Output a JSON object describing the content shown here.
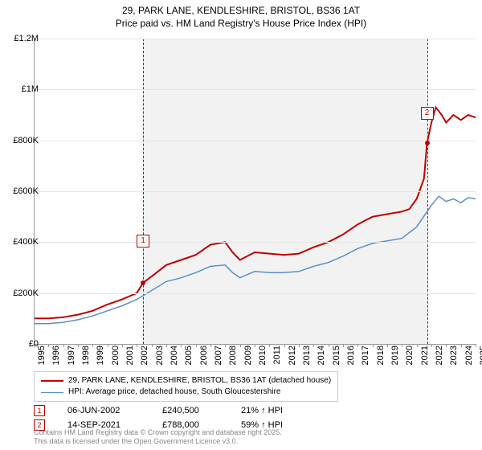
{
  "title_line1": "29, PARK LANE, KENDLESHIRE, BRISTOL, BS36 1AT",
  "title_line2": "Price paid vs. HM Land Registry's House Price Index (HPI)",
  "chart": {
    "type": "line",
    "x_min": 1995,
    "x_max": 2025,
    "y_min": 0,
    "y_max": 1200000,
    "y_ticks": [
      0,
      200000,
      400000,
      600000,
      800000,
      1000000,
      1200000
    ],
    "y_tick_labels": [
      "£0",
      "£200K",
      "£400K",
      "£600K",
      "£800K",
      "£1M",
      "£1.2M"
    ],
    "x_ticks": [
      1995,
      1996,
      1997,
      1998,
      1999,
      2000,
      2001,
      2002,
      2003,
      2004,
      2005,
      2006,
      2007,
      2008,
      2009,
      2010,
      2011,
      2012,
      2013,
      2014,
      2015,
      2016,
      2017,
      2018,
      2019,
      2020,
      2021,
      2022,
      2023,
      2024,
      2025
    ],
    "gridline_color": "#e5e5e5",
    "background_color": "#ffffff",
    "shaded_color": "#f2f2f2",
    "shaded_range": [
      2002.43,
      2021.7
    ],
    "series_red": {
      "color": "#c00000",
      "width": 2,
      "data": [
        [
          1995,
          100000
        ],
        [
          1996,
          100000
        ],
        [
          1997,
          105000
        ],
        [
          1998,
          115000
        ],
        [
          1999,
          130000
        ],
        [
          2000,
          155000
        ],
        [
          2001,
          175000
        ],
        [
          2002,
          200000
        ],
        [
          2002.43,
          240500
        ],
        [
          2003,
          265000
        ],
        [
          2004,
          310000
        ],
        [
          2005,
          330000
        ],
        [
          2006,
          350000
        ],
        [
          2007,
          390000
        ],
        [
          2008,
          400000
        ],
        [
          2008.5,
          360000
        ],
        [
          2009,
          330000
        ],
        [
          2010,
          360000
        ],
        [
          2011,
          355000
        ],
        [
          2012,
          350000
        ],
        [
          2013,
          355000
        ],
        [
          2014,
          380000
        ],
        [
          2015,
          400000
        ],
        [
          2016,
          430000
        ],
        [
          2017,
          470000
        ],
        [
          2018,
          500000
        ],
        [
          2019,
          510000
        ],
        [
          2020,
          520000
        ],
        [
          2020.5,
          530000
        ],
        [
          2021,
          570000
        ],
        [
          2021.5,
          650000
        ],
        [
          2021.7,
          788000
        ],
        [
          2022,
          870000
        ],
        [
          2022.3,
          930000
        ],
        [
          2022.7,
          900000
        ],
        [
          2023,
          870000
        ],
        [
          2023.5,
          900000
        ],
        [
          2024,
          880000
        ],
        [
          2024.5,
          900000
        ],
        [
          2025,
          890000
        ]
      ]
    },
    "series_blue": {
      "color": "#5b8fc7",
      "width": 1.5,
      "data": [
        [
          1995,
          80000
        ],
        [
          1996,
          80000
        ],
        [
          1997,
          85000
        ],
        [
          1998,
          95000
        ],
        [
          1999,
          110000
        ],
        [
          2000,
          130000
        ],
        [
          2001,
          150000
        ],
        [
          2002,
          175000
        ],
        [
          2003,
          210000
        ],
        [
          2004,
          245000
        ],
        [
          2005,
          260000
        ],
        [
          2006,
          280000
        ],
        [
          2007,
          305000
        ],
        [
          2008,
          310000
        ],
        [
          2008.5,
          280000
        ],
        [
          2009,
          260000
        ],
        [
          2010,
          285000
        ],
        [
          2011,
          280000
        ],
        [
          2012,
          280000
        ],
        [
          2013,
          285000
        ],
        [
          2014,
          305000
        ],
        [
          2015,
          320000
        ],
        [
          2016,
          345000
        ],
        [
          2017,
          375000
        ],
        [
          2018,
          395000
        ],
        [
          2019,
          405000
        ],
        [
          2020,
          415000
        ],
        [
          2021,
          460000
        ],
        [
          2022,
          545000
        ],
        [
          2022.5,
          580000
        ],
        [
          2023,
          560000
        ],
        [
          2023.5,
          570000
        ],
        [
          2024,
          555000
        ],
        [
          2024.5,
          575000
        ],
        [
          2025,
          570000
        ]
      ]
    },
    "markers": [
      {
        "n": "1",
        "x": 2002.43,
        "y": 240500
      },
      {
        "n": "2",
        "x": 2021.7,
        "y": 788000
      }
    ]
  },
  "legend": {
    "series1": {
      "color": "#c00000",
      "label": "29, PARK LANE, KENDLESHIRE, BRISTOL, BS36 1AT (detached house)"
    },
    "series2": {
      "color": "#5b8fc7",
      "label": "HPI: Average price, detached house, South Gloucestershire"
    }
  },
  "sales": [
    {
      "n": "1",
      "date": "06-JUN-2002",
      "price": "£240,500",
      "delta": "21% ↑ HPI"
    },
    {
      "n": "2",
      "date": "14-SEP-2021",
      "price": "£788,000",
      "delta": "59% ↑ HPI"
    }
  ],
  "footer_line1": "Contains HM Land Registry data © Crown copyright and database right 2025.",
  "footer_line2": "This data is licensed under the Open Government Licence v3.0."
}
